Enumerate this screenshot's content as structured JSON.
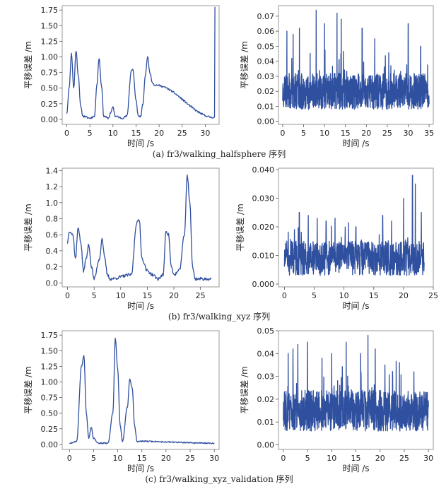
{
  "figure": {
    "line_color": "#2f4f9f",
    "rows": [
      {
        "caption": "(a) fr3/walking_halfsphere 序列"
      },
      {
        "caption": "(b) fr3/walking_xyz 序列"
      },
      {
        "caption": "(c) fr3/walking_xyz_validation 序列"
      }
    ]
  },
  "chart_data": [
    {
      "type": "line",
      "row": 0,
      "col": 0,
      "xlabel": "时间 /s",
      "ylabel": "平移误差 /m",
      "xlim": [
        -1,
        33
      ],
      "ylim": [
        -0.08,
        1.82
      ],
      "xticks": [
        0,
        5,
        10,
        15,
        20,
        25,
        30
      ],
      "yticks": [
        0.0,
        0.25,
        0.5,
        0.75,
        1.0,
        1.25,
        1.5,
        1.75
      ],
      "ytick_decimals": 2,
      "generator": "smooth",
      "noise": 0.03,
      "seed": 11,
      "keypoints": [
        [
          0,
          0.1
        ],
        [
          0.5,
          0.5
        ],
        [
          1,
          1.05
        ],
        [
          1.5,
          0.5
        ],
        [
          2,
          1.1
        ],
        [
          2.5,
          0.7
        ],
        [
          3,
          0.2
        ],
        [
          3.5,
          0.05
        ],
        [
          5,
          0.02
        ],
        [
          6,
          0.05
        ],
        [
          6.5,
          0.55
        ],
        [
          7,
          0.98
        ],
        [
          7.5,
          0.55
        ],
        [
          8,
          0.05
        ],
        [
          9,
          0.02
        ],
        [
          9.5,
          0.1
        ],
        [
          10,
          0.2
        ],
        [
          10.5,
          0.05
        ],
        [
          12,
          0.02
        ],
        [
          13,
          0.05
        ],
        [
          14,
          0.78
        ],
        [
          14.3,
          0.8
        ],
        [
          15,
          0.3
        ],
        [
          15.5,
          0.05
        ],
        [
          16,
          0.05
        ],
        [
          16.5,
          0.25
        ],
        [
          17,
          0.7
        ],
        [
          17.5,
          1.0
        ],
        [
          18,
          0.75
        ],
        [
          18.5,
          0.6
        ],
        [
          19,
          0.55
        ],
        [
          32,
          0.03
        ],
        [
          32.1,
          1.8
        ]
      ]
    },
    {
      "type": "line",
      "row": 0,
      "col": 1,
      "xlabel": "时间 /s",
      "ylabel": "平移误差 /m",
      "xlim": [
        -1,
        36
      ],
      "ylim": [
        -0.002,
        0.077
      ],
      "xticks": [
        0,
        5,
        10,
        15,
        20,
        25,
        30,
        35
      ],
      "yticks": [
        0.0,
        0.01,
        0.02,
        0.03,
        0.04,
        0.05,
        0.06,
        0.07
      ],
      "ytick_decimals": 2,
      "generator": "noise",
      "t_end": 35,
      "n_samples": 900,
      "base": 0.02,
      "amp": 0.012,
      "seed": 23,
      "spikes": [
        [
          1,
          0.06
        ],
        [
          2.5,
          0.058
        ],
        [
          4,
          0.062
        ],
        [
          8,
          0.074
        ],
        [
          10,
          0.065
        ],
        [
          13,
          0.072
        ],
        [
          14,
          0.068
        ],
        [
          19,
          0.062
        ],
        [
          22,
          0.055
        ],
        [
          30,
          0.065
        ],
        [
          33,
          0.05
        ]
      ]
    },
    {
      "type": "line",
      "row": 1,
      "col": 0,
      "xlabel": "时间 /s",
      "ylabel": "平移误差 /m",
      "xlim": [
        -1,
        28.5
      ],
      "ylim": [
        -0.05,
        1.43
      ],
      "xticks": [
        0,
        5,
        10,
        15,
        20,
        25
      ],
      "yticks": [
        0.0,
        0.2,
        0.4,
        0.6,
        0.8,
        1.0,
        1.2,
        1.4
      ],
      "ytick_decimals": 1,
      "generator": "smooth",
      "noise": 0.04,
      "seed": 37,
      "keypoints": [
        [
          0,
          0.5
        ],
        [
          0.3,
          0.65
        ],
        [
          1,
          0.6
        ],
        [
          1.5,
          0.3
        ],
        [
          2,
          0.7
        ],
        [
          2.5,
          0.5
        ],
        [
          3,
          0.15
        ],
        [
          3.5,
          0.3
        ],
        [
          4,
          0.48
        ],
        [
          4.5,
          0.2
        ],
        [
          5,
          0.05
        ],
        [
          6,
          0.3
        ],
        [
          6.5,
          0.55
        ],
        [
          7,
          0.3
        ],
        [
          7.5,
          0.1
        ],
        [
          8,
          0.05
        ],
        [
          12,
          0.1
        ],
        [
          13,
          0.75
        ],
        [
          13.5,
          0.78
        ],
        [
          14,
          0.3
        ],
        [
          15,
          0.15
        ],
        [
          16,
          0.1
        ],
        [
          17,
          0.05
        ],
        [
          18,
          0.1
        ],
        [
          18.5,
          0.65
        ],
        [
          19,
          0.6
        ],
        [
          19.5,
          0.2
        ],
        [
          20,
          0.1
        ],
        [
          21,
          0.15
        ],
        [
          22,
          0.6
        ],
        [
          22.5,
          1.35
        ],
        [
          23,
          1.0
        ],
        [
          23.5,
          0.2
        ],
        [
          24,
          0.05
        ],
        [
          27,
          0.05
        ]
      ]
    },
    {
      "type": "line",
      "row": 1,
      "col": 1,
      "xlabel": "时间 /s",
      "ylabel": "平移误差 /m",
      "xlim": [
        -1,
        25
      ],
      "ylim": [
        -0.001,
        0.0405
      ],
      "xticks": [
        0,
        5,
        10,
        15,
        20,
        25
      ],
      "yticks": [
        0.0,
        0.01,
        0.02,
        0.03,
        0.04
      ],
      "ytick_decimals": 3,
      "generator": "noise",
      "t_end": 23.5,
      "n_samples": 700,
      "base": 0.009,
      "amp": 0.006,
      "seed": 51,
      "spikes": [
        [
          2.5,
          0.025
        ],
        [
          4,
          0.024
        ],
        [
          5.5,
          0.023
        ],
        [
          7,
          0.022
        ],
        [
          8.5,
          0.023
        ],
        [
          12,
          0.02
        ],
        [
          16.5,
          0.024
        ],
        [
          18,
          0.022
        ],
        [
          20,
          0.03
        ],
        [
          21.5,
          0.038
        ],
        [
          22,
          0.035
        ],
        [
          23,
          0.025
        ]
      ]
    },
    {
      "type": "line",
      "row": 2,
      "col": 0,
      "xlabel": "时间 /s",
      "ylabel": "平移误差 /m",
      "xlim": [
        -1.5,
        31
      ],
      "ylim": [
        -0.08,
        1.82
      ],
      "xticks": [
        0,
        5,
        10,
        15,
        20,
        25,
        30
      ],
      "yticks": [
        0.0,
        0.25,
        0.5,
        0.75,
        1.0,
        1.25,
        1.5,
        1.75
      ],
      "ytick_decimals": 2,
      "generator": "smooth",
      "noise": 0.02,
      "seed": 67,
      "keypoints": [
        [
          0,
          0.02
        ],
        [
          1.5,
          0.05
        ],
        [
          2.5,
          1.25
        ],
        [
          3,
          1.42
        ],
        [
          3.5,
          0.5
        ],
        [
          4,
          0.1
        ],
        [
          4.5,
          0.28
        ],
        [
          5,
          0.1
        ],
        [
          6,
          0.02
        ],
        [
          8,
          0.02
        ],
        [
          9,
          0.5
        ],
        [
          9.5,
          1.7
        ],
        [
          10,
          1.2
        ],
        [
          10.5,
          0.3
        ],
        [
          11,
          0.05
        ],
        [
          12,
          0.6
        ],
        [
          12.5,
          1.05
        ],
        [
          13,
          0.9
        ],
        [
          13.5,
          0.3
        ],
        [
          14,
          0.05
        ],
        [
          30,
          0.02
        ]
      ]
    },
    {
      "type": "line",
      "row": 2,
      "col": 1,
      "xlabel": "时间 /s",
      "ylabel": "平移误差 /m",
      "xlim": [
        -1,
        31
      ],
      "ylim": [
        -0.002,
        0.05
      ],
      "xticks": [
        0,
        5,
        10,
        15,
        20,
        25,
        30
      ],
      "yticks": [
        0.0,
        0.01,
        0.02,
        0.03,
        0.04,
        0.05
      ],
      "ytick_decimals": 2,
      "generator": "noise",
      "t_end": 30,
      "n_samples": 900,
      "base": 0.015,
      "amp": 0.009,
      "seed": 83,
      "spikes": [
        [
          1,
          0.04
        ],
        [
          2,
          0.042
        ],
        [
          3,
          0.044
        ],
        [
          5,
          0.045
        ],
        [
          8,
          0.038
        ],
        [
          10,
          0.04
        ],
        [
          13,
          0.045
        ],
        [
          16,
          0.04
        ],
        [
          17.5,
          0.048
        ],
        [
          19,
          0.042
        ],
        [
          21,
          0.035
        ],
        [
          24,
          0.036
        ],
        [
          27,
          0.032
        ]
      ]
    }
  ]
}
